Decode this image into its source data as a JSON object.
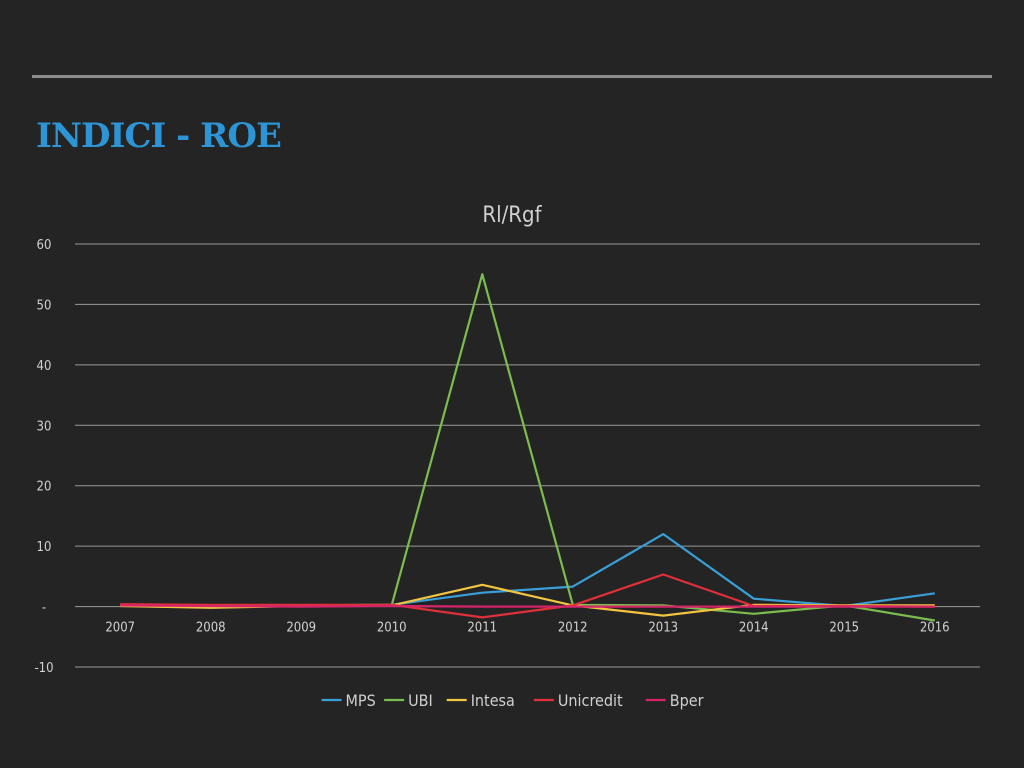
{
  "slide": {
    "title": "INDICI - ROE"
  },
  "colors": {
    "background": "#242424",
    "title": "#2d95d6",
    "text": "#d0d0d0",
    "grid": "#9a9a9a"
  },
  "chart_data": {
    "type": "line",
    "title": "Rl/Rgf",
    "xlabel": "",
    "ylabel": "",
    "ylim": [
      -10,
      60
    ],
    "y_ticks": [
      -10,
      0,
      10,
      20,
      30,
      40,
      50,
      60
    ],
    "y_tick_labels": [
      "-10",
      "-",
      "10",
      "20",
      "30",
      "40",
      "50",
      "60"
    ],
    "grid": true,
    "legend_position": "bottom",
    "categories": [
      "2007",
      "2008",
      "2009",
      "2010",
      "2011",
      "2012",
      "2013",
      "2014",
      "2015",
      "2016"
    ],
    "series": [
      {
        "name": "MPS",
        "color": "#3a9fd6",
        "values": [
          0.3,
          0.2,
          0.2,
          0.3,
          2.3,
          3.3,
          12.0,
          1.3,
          0.1,
          2.2
        ]
      },
      {
        "name": "UBI",
        "color": "#7cbc4f",
        "values": [
          0.3,
          0.2,
          0.2,
          0.3,
          55.0,
          0.3,
          0.2,
          -1.2,
          0.2,
          -2.3
        ]
      },
      {
        "name": "Intesa",
        "color": "#f2c440",
        "values": [
          0.1,
          -0.2,
          0.1,
          0.2,
          3.6,
          0.2,
          -1.5,
          0.3,
          0.2,
          0.2
        ]
      },
      {
        "name": "Unicredit",
        "color": "#e0303a",
        "values": [
          0.4,
          0.3,
          0.3,
          0.3,
          -1.8,
          0.2,
          5.3,
          0.1,
          0.1,
          0.0
        ]
      },
      {
        "name": "Bper",
        "color": "#d4246a",
        "values": [
          0.2,
          0.1,
          0.0,
          0.1,
          0.0,
          0.0,
          0.0,
          0.0,
          0.0,
          0.0
        ]
      }
    ]
  }
}
